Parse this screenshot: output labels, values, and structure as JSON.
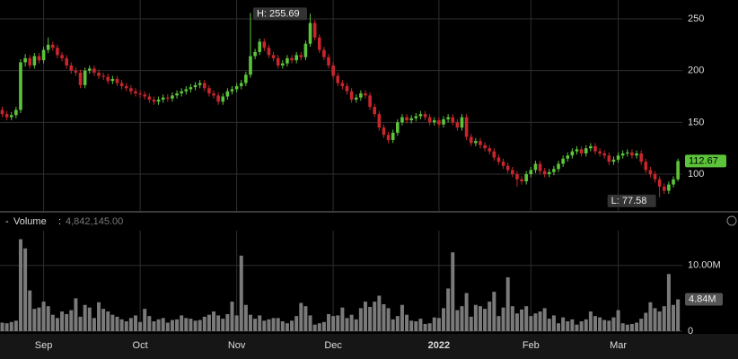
{
  "chart_data": {
    "type": "candlestick",
    "categories": [
      null,
      null,
      null,
      null,
      null,
      null,
      null,
      null,
      null,
      "Sep",
      null,
      null,
      null,
      null,
      null,
      null,
      null,
      null,
      null,
      null,
      null,
      null,
      null,
      null,
      null,
      null,
      null,
      null,
      null,
      null,
      "Oct",
      null,
      null,
      null,
      null,
      null,
      null,
      null,
      null,
      null,
      null,
      null,
      null,
      null,
      null,
      null,
      null,
      null,
      null,
      null,
      null,
      "Nov",
      null,
      null,
      null,
      null,
      null,
      null,
      null,
      null,
      null,
      null,
      null,
      null,
      null,
      null,
      null,
      null,
      null,
      null,
      null,
      null,
      "Dec",
      null,
      null,
      null,
      null,
      null,
      null,
      null,
      null,
      null,
      null,
      null,
      null,
      null,
      null,
      null,
      null,
      null,
      null,
      null,
      null,
      null,
      null,
      "2022",
      null,
      null,
      null,
      null,
      null,
      null,
      null,
      null,
      null,
      null,
      null,
      null,
      null,
      null,
      null,
      null,
      null,
      null,
      null,
      "Feb",
      null,
      null,
      null,
      null,
      null,
      null,
      null,
      null,
      null,
      null,
      null,
      null,
      null,
      null,
      null,
      null,
      null,
      null,
      "Mar",
      null,
      null,
      null,
      null,
      null,
      null,
      null,
      null,
      null,
      null,
      null,
      null,
      null
    ],
    "ohlc": [
      [
        162,
        165,
        155,
        158
      ],
      [
        158,
        161,
        152,
        155
      ],
      [
        155,
        160,
        152,
        157
      ],
      [
        157,
        165,
        154,
        162
      ],
      [
        162,
        211,
        159,
        208
      ],
      [
        208,
        216,
        204,
        212
      ],
      [
        212,
        215,
        202,
        205
      ],
      [
        205,
        217,
        202,
        214
      ],
      [
        214,
        217,
        207,
        210
      ],
      [
        210,
        223,
        207,
        220
      ],
      [
        220,
        232,
        217,
        225
      ],
      [
        225,
        228,
        219,
        222
      ],
      [
        222,
        225,
        212,
        215
      ],
      [
        215,
        218,
        209,
        212
      ],
      [
        212,
        215,
        202,
        205
      ],
      [
        205,
        208,
        197,
        200
      ],
      [
        200,
        203,
        195,
        198
      ],
      [
        198,
        201,
        183,
        186
      ],
      [
        186,
        203,
        183,
        200
      ],
      [
        200,
        205,
        197,
        202
      ],
      [
        202,
        205,
        195,
        198
      ],
      [
        198,
        201,
        192,
        195
      ],
      [
        195,
        198,
        191,
        194
      ],
      [
        194,
        197,
        187,
        190
      ],
      [
        190,
        195,
        187,
        192
      ],
      [
        192,
        195,
        185,
        188
      ],
      [
        188,
        191,
        182,
        185
      ],
      [
        185,
        188,
        180,
        183
      ],
      [
        183,
        186,
        177,
        180
      ],
      [
        180,
        183,
        175,
        178
      ],
      [
        178,
        181,
        174,
        177
      ],
      [
        177,
        180,
        172,
        175
      ],
      [
        175,
        178,
        169,
        172
      ],
      [
        172,
        175,
        167,
        170
      ],
      [
        170,
        175,
        167,
        172
      ],
      [
        172,
        177,
        169,
        174
      ],
      [
        174,
        177,
        170,
        173
      ],
      [
        173,
        179,
        170,
        176
      ],
      [
        176,
        181,
        173,
        178
      ],
      [
        178,
        183,
        175,
        180
      ],
      [
        180,
        185,
        177,
        182
      ],
      [
        182,
        187,
        179,
        184
      ],
      [
        184,
        189,
        181,
        186
      ],
      [
        186,
        191,
        183,
        188
      ],
      [
        188,
        191,
        180,
        183
      ],
      [
        183,
        186,
        175,
        178
      ],
      [
        178,
        181,
        173,
        176
      ],
      [
        176,
        179,
        167,
        170
      ],
      [
        170,
        178,
        167,
        175
      ],
      [
        175,
        183,
        172,
        180
      ],
      [
        180,
        185,
        177,
        182
      ],
      [
        182,
        188,
        179,
        185
      ],
      [
        185,
        191,
        182,
        188
      ],
      [
        188,
        199,
        185,
        196
      ],
      [
        196,
        255.69,
        193,
        214
      ],
      [
        214,
        221,
        211,
        218
      ],
      [
        218,
        231,
        215,
        228
      ],
      [
        228,
        231,
        219,
        222
      ],
      [
        222,
        225,
        212,
        215
      ],
      [
        215,
        218,
        209,
        212
      ],
      [
        212,
        215,
        202,
        205
      ],
      [
        205,
        210,
        202,
        207
      ],
      [
        207,
        215,
        204,
        212
      ],
      [
        212,
        215,
        207,
        210
      ],
      [
        210,
        218,
        207,
        215
      ],
      [
        215,
        218,
        210,
        213
      ],
      [
        213,
        229,
        210,
        226
      ],
      [
        226,
        255,
        223,
        246
      ],
      [
        246,
        249,
        229,
        232
      ],
      [
        232,
        235,
        217,
        220
      ],
      [
        220,
        223,
        210,
        213
      ],
      [
        213,
        216,
        202,
        205
      ],
      [
        205,
        208,
        192,
        195
      ],
      [
        195,
        198,
        185,
        188
      ],
      [
        188,
        191,
        182,
        185
      ],
      [
        185,
        188,
        177,
        180
      ],
      [
        180,
        183,
        169,
        172
      ],
      [
        172,
        177,
        169,
        174
      ],
      [
        174,
        181,
        171,
        178
      ],
      [
        178,
        181,
        173,
        176
      ],
      [
        176,
        179,
        162,
        165
      ],
      [
        165,
        168,
        155,
        158
      ],
      [
        158,
        161,
        142,
        145
      ],
      [
        145,
        148,
        135,
        138
      ],
      [
        138,
        141,
        130,
        133
      ],
      [
        133,
        143,
        130,
        140
      ],
      [
        140,
        153,
        137,
        150
      ],
      [
        150,
        158,
        147,
        155
      ],
      [
        155,
        158,
        149,
        152
      ],
      [
        152,
        157,
        149,
        154
      ],
      [
        154,
        159,
        151,
        156
      ],
      [
        156,
        161,
        153,
        158
      ],
      [
        158,
        161,
        152,
        155
      ],
      [
        155,
        158,
        147,
        150
      ],
      [
        150,
        155,
        147,
        152
      ],
      [
        152,
        155,
        145,
        148
      ],
      [
        148,
        156,
        145,
        153
      ],
      [
        153,
        158,
        150,
        155
      ],
      [
        155,
        158,
        147,
        150
      ],
      [
        150,
        153,
        142,
        145
      ],
      [
        145,
        158,
        142,
        155
      ],
      [
        155,
        158,
        133,
        136
      ],
      [
        136,
        139,
        127,
        130
      ],
      [
        130,
        135,
        127,
        132
      ],
      [
        132,
        135,
        125,
        128
      ],
      [
        128,
        131,
        122,
        125
      ],
      [
        125,
        128,
        119,
        122
      ],
      [
        122,
        125,
        113,
        116
      ],
      [
        116,
        119,
        109,
        112
      ],
      [
        112,
        115,
        105,
        108
      ],
      [
        108,
        111,
        101,
        104
      ],
      [
        104,
        107,
        97,
        100
      ],
      [
        100,
        103,
        88,
        95
      ],
      [
        95,
        98,
        90,
        93
      ],
      [
        93,
        103,
        90,
        100
      ],
      [
        100,
        107,
        97,
        104
      ],
      [
        104,
        113,
        101,
        110
      ],
      [
        110,
        113,
        100,
        103
      ],
      [
        103,
        106,
        97,
        100
      ],
      [
        100,
        105,
        97,
        102
      ],
      [
        102,
        108,
        99,
        105
      ],
      [
        105,
        113,
        102,
        110
      ],
      [
        110,
        118,
        107,
        115
      ],
      [
        115,
        121,
        112,
        118
      ],
      [
        118,
        125,
        115,
        122
      ],
      [
        122,
        127,
        119,
        124
      ],
      [
        124,
        127,
        117,
        120
      ],
      [
        120,
        128,
        117,
        125
      ],
      [
        125,
        130,
        122,
        127
      ],
      [
        127,
        130,
        119,
        122
      ],
      [
        122,
        125,
        117,
        120
      ],
      [
        120,
        123,
        115,
        118
      ],
      [
        118,
        121,
        109,
        112
      ],
      [
        112,
        117,
        109,
        114
      ],
      [
        114,
        121,
        111,
        118
      ],
      [
        118,
        123,
        115,
        120
      ],
      [
        120,
        124,
        117,
        121
      ],
      [
        121,
        124,
        115,
        118
      ],
      [
        118,
        123,
        115,
        120
      ],
      [
        120,
        123,
        109,
        112
      ],
      [
        112,
        115,
        101,
        104
      ],
      [
        104,
        107,
        97,
        100
      ],
      [
        100,
        103,
        92,
        95
      ],
      [
        95,
        98,
        77.58,
        88
      ],
      [
        88,
        91,
        81,
        84
      ],
      [
        84,
        93,
        81,
        90
      ],
      [
        90,
        98,
        87,
        95
      ],
      [
        95,
        115,
        93,
        112.67
      ]
    ],
    "up_color": "#5cc43a",
    "down_color": "#c8262c",
    "ylim": [
      64.5,
      268.2
    ],
    "yticks": [
      100,
      150,
      200,
      250
    ],
    "grid": true,
    "high_label": "H: 255.69",
    "low_label": "L: 77.58",
    "last_price_label": "112.67",
    "volume": {
      "header": {
        "icon": "-",
        "name": "Volume",
        "sep": ":",
        "value": "4,842,145.00"
      },
      "color": "#7a7a7a",
      "values": [
        1300000,
        1200000,
        1400000,
        1600000,
        14000000,
        12600000,
        6200000,
        3400000,
        3600000,
        4500000,
        3800000,
        2500000,
        2000000,
        3000000,
        2600000,
        3200000,
        5000000,
        2200000,
        4000000,
        3600000,
        2000000,
        4400000,
        3400000,
        3000000,
        2500000,
        2200000,
        1800000,
        1500000,
        2000000,
        2400000,
        1400000,
        3400000,
        2300000,
        1500000,
        1800000,
        2000000,
        1300000,
        1700000,
        1800000,
        2400000,
        2000000,
        1900000,
        1600000,
        1700000,
        2200000,
        2500000,
        3000000,
        2400000,
        1900000,
        2600000,
        4500000,
        2400000,
        11500000,
        4000000,
        2500000,
        1900000,
        2400000,
        1600000,
        1800000,
        2000000,
        2000000,
        1500000,
        1200000,
        1600000,
        2300000,
        4300000,
        3800000,
        2400000,
        1000000,
        1200000,
        1400000,
        2600000,
        2300000,
        2400000,
        3600000,
        2000000,
        2500000,
        1800000,
        3500000,
        4500000,
        3700000,
        4500000,
        5400000,
        4100000,
        3500000,
        1800000,
        2300000,
        4000000,
        2500000,
        1600000,
        1500000,
        1900000,
        1100000,
        1200000,
        2100000,
        2000000,
        3500000,
        6500000,
        12000000,
        3200000,
        3800000,
        5800000,
        2200000,
        4000000,
        3800000,
        3400000,
        4500000,
        6000000,
        2300000,
        3600000,
        8200000,
        3800000,
        2700000,
        3300000,
        3800000,
        2300000,
        2700000,
        3000000,
        3500000,
        1900000,
        2400000,
        1200000,
        2100000,
        1500000,
        1800000,
        1000000,
        1500000,
        1800000,
        3000000,
        2300000,
        2100000,
        1700000,
        1600000,
        2100000,
        3200000,
        1200000,
        1000000,
        1100000,
        1300000,
        1900000,
        2800000,
        4400000,
        3500000,
        3000000,
        3800000,
        8700000,
        4000000,
        4842145
      ],
      "last_label": "4.84M",
      "ylim": [
        0,
        15300000
      ],
      "yticks": [
        0,
        {
          "value": 10000000,
          "label": "10.00M"
        }
      ]
    }
  }
}
